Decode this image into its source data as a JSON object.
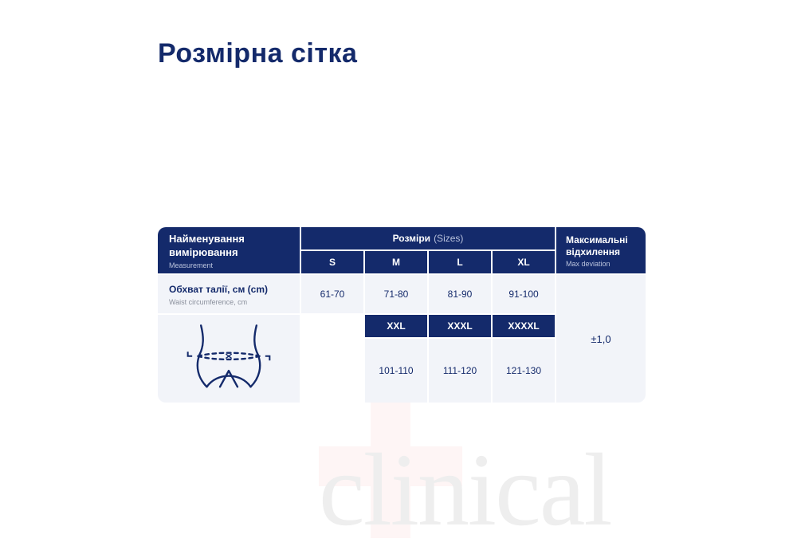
{
  "theme": {
    "primary": "#142a6b",
    "cell_bg": "#f2f4f9",
    "border_gap": "#ffffff",
    "text_dark": "#142a6b",
    "text_muted_on_dark": "#b9c2dc",
    "text_muted_on_light": "#8a8f9c",
    "watermark_text_color": "#eeeeee",
    "watermark_plus_color": "#fde3e3"
  },
  "page": {
    "title": "Розмірна сітка"
  },
  "watermark": {
    "text": "clinical"
  },
  "table": {
    "measurement_header": {
      "title": "Найменування вимірювання",
      "sub": "Measurement"
    },
    "sizes_header": {
      "title": "Розміри",
      "sub": "(Sizes)"
    },
    "deviation_header": {
      "title": "Максимальні відхилення",
      "sub": "Max deviation"
    },
    "measurement_row": {
      "title": "Обхват талії, см (cm)",
      "sub": "Waist circumference, cm"
    },
    "sizes_row1": [
      "S",
      "M",
      "L",
      "XL"
    ],
    "values_row1": [
      "61-70",
      "71-80",
      "81-90",
      "91-100"
    ],
    "sizes_row2": [
      "XXL",
      "XXXL",
      "XXXXL"
    ],
    "values_row2": [
      "101-110",
      "111-120",
      "121-130"
    ],
    "deviation_value": "±1,0"
  }
}
